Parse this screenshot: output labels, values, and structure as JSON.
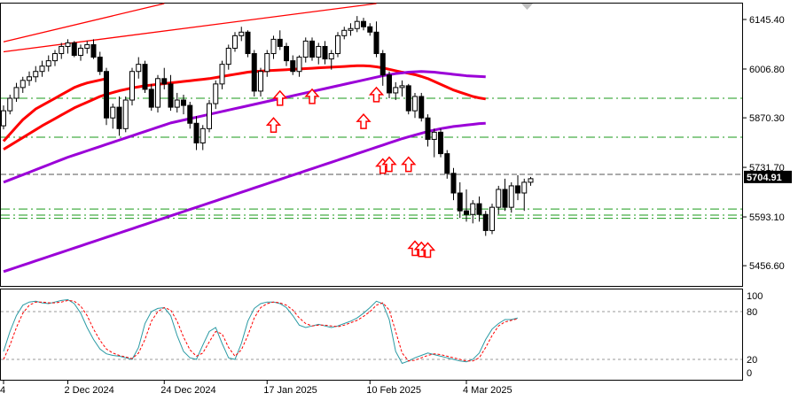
{
  "chart_data": [
    {
      "type": "candlestick",
      "panel": "price",
      "y_ticks": [
        "6145.40",
        "6006.80",
        "5870.30",
        "5731.70",
        "5593.10",
        "5456.60"
      ],
      "ylim": [
        5400,
        6190
      ],
      "price_label": "5704.91",
      "price_label_value": 5704.91,
      "x_ticks": [
        {
          "label": "4",
          "index": 0
        },
        {
          "label": "2 Dec 2024",
          "index": 10
        },
        {
          "label": "24 Dec 2024",
          "index": 25
        },
        {
          "label": "17 Jan 2025",
          "index": 41
        },
        {
          "label": "10 Feb 2025",
          "index": 57
        },
        {
          "label": "4 Mar 2025",
          "index": 72
        }
      ],
      "candles": [
        [
          5848,
          5905,
          5838,
          5890
        ],
        [
          5890,
          5935,
          5880,
          5925
        ],
        [
          5925,
          5968,
          5915,
          5955
        ],
        [
          5955,
          5985,
          5940,
          5975
        ],
        [
          5975,
          6000,
          5960,
          5985
        ],
        [
          5985,
          6015,
          5970,
          6000
        ],
        [
          6000,
          6030,
          5985,
          6015
        ],
        [
          6015,
          6045,
          6000,
          6030
        ],
        [
          6030,
          6060,
          6015,
          6050
        ],
        [
          6050,
          6080,
          6035,
          6070
        ],
        [
          6070,
          6090,
          6050,
          6080
        ],
        [
          6080,
          6085,
          6040,
          6045
        ],
        [
          6045,
          6075,
          6030,
          6065
        ],
        [
          6065,
          6085,
          6050,
          6075
        ],
        [
          6075,
          6090,
          6035,
          6040
        ],
        [
          6040,
          6055,
          5990,
          6000
        ],
        [
          6000,
          6010,
          5850,
          5870
        ],
        [
          5870,
          5910,
          5840,
          5900
        ],
        [
          5900,
          5930,
          5820,
          5840
        ],
        [
          5840,
          5930,
          5830,
          5920
        ],
        [
          5920,
          6010,
          5905,
          6000
        ],
        [
          6000,
          6040,
          5980,
          6020
        ],
        [
          6020,
          6030,
          5940,
          5950
        ],
        [
          5950,
          5965,
          5890,
          5900
        ],
        [
          5900,
          5990,
          5885,
          5980
        ],
        [
          5980,
          6010,
          5950,
          5965
        ],
        [
          5965,
          5990,
          5890,
          5900
        ],
        [
          5900,
          5940,
          5885,
          5920
        ],
        [
          5920,
          5935,
          5880,
          5905
        ],
        [
          5905,
          5915,
          5840,
          5855
        ],
        [
          5855,
          5875,
          5780,
          5800
        ],
        [
          5800,
          5850,
          5780,
          5840
        ],
        [
          5840,
          5920,
          5830,
          5910
        ],
        [
          5910,
          5975,
          5895,
          5965
        ],
        [
          5965,
          6030,
          5950,
          6020
        ],
        [
          6020,
          6075,
          6005,
          6065
        ],
        [
          6065,
          6110,
          6055,
          6100
        ],
        [
          6100,
          6125,
          6085,
          6110
        ],
        [
          6110,
          6115,
          6040,
          6050
        ],
        [
          6050,
          6060,
          5930,
          5945
        ],
        [
          5945,
          6010,
          5930,
          6000
        ],
        [
          6000,
          6060,
          5985,
          6050
        ],
        [
          6050,
          6100,
          6035,
          6090
        ],
        [
          6090,
          6115,
          6060,
          6070
        ],
        [
          6070,
          6080,
          6015,
          6030
        ],
        [
          6030,
          6045,
          5990,
          6000
        ],
        [
          6000,
          6045,
          5985,
          6040
        ],
        [
          6040,
          6095,
          6025,
          6085
        ],
        [
          6085,
          6095,
          6030,
          6040
        ],
        [
          6040,
          6080,
          6020,
          6070
        ],
        [
          6070,
          6085,
          6020,
          6035
        ],
        [
          6035,
          6060,
          6005,
          6050
        ],
        [
          6050,
          6110,
          6040,
          6100
        ],
        [
          6100,
          6125,
          6090,
          6115
        ],
        [
          6115,
          6135,
          6100,
          6120
        ],
        [
          6120,
          6155,
          6110,
          6140
        ],
        [
          6140,
          6150,
          6115,
          6125
        ],
        [
          6125,
          6135,
          6100,
          6110
        ],
        [
          6110,
          6140,
          6040,
          6050
        ],
        [
          6050,
          6060,
          5960,
          5990
        ],
        [
          5990,
          6000,
          5925,
          5940
        ],
        [
          5940,
          5970,
          5920,
          5955
        ],
        [
          5955,
          5975,
          5930,
          5960
        ],
        [
          5960,
          5965,
          5880,
          5890
        ],
        [
          5890,
          5940,
          5870,
          5930
        ],
        [
          5930,
          5940,
          5860,
          5870
        ],
        [
          5870,
          5880,
          5790,
          5810
        ],
        [
          5810,
          5840,
          5760,
          5830
        ],
        [
          5830,
          5840,
          5760,
          5770
        ],
        [
          5770,
          5780,
          5700,
          5715
        ],
        [
          5715,
          5730,
          5640,
          5660
        ],
        [
          5660,
          5690,
          5590,
          5610
        ],
        [
          5610,
          5670,
          5580,
          5600
        ],
        [
          5600,
          5640,
          5575,
          5630
        ],
        [
          5630,
          5650,
          5580,
          5600
        ],
        [
          5600,
          5610,
          5540,
          5555
        ],
        [
          5555,
          5630,
          5545,
          5620
        ],
        [
          5620,
          5680,
          5600,
          5670
        ],
        [
          5670,
          5700,
          5610,
          5620
        ],
        [
          5620,
          5690,
          5605,
          5680
        ],
        [
          5680,
          5710,
          5640,
          5660
        ],
        [
          5660,
          5700,
          5610,
          5690
        ],
        [
          5690,
          5705,
          5680,
          5700
        ]
      ],
      "moving_averages": [
        {
          "color": "#ff0000",
          "values": [
            5782,
            5793,
            5804,
            5815,
            5826,
            5837,
            5848,
            5858,
            5868,
            5878,
            5888,
            5898,
            5906,
            5914,
            5922,
            5930,
            5936,
            5941,
            5946,
            5950,
            5954,
            5957,
            5960,
            5962,
            5964,
            5966,
            5968,
            5970,
            5972,
            5974,
            5976,
            5978,
            5980,
            5983,
            5986,
            5989,
            5992,
            5995,
            5998,
            6000,
            6001,
            6002,
            6003,
            6004,
            6005,
            6006,
            6007,
            6008,
            6009,
            6010,
            6011,
            6012,
            6013,
            6014,
            6015,
            6016,
            6016,
            6015,
            6013,
            6010,
            6006,
            6002,
            5998,
            5995,
            5991,
            5986,
            5980,
            5972,
            5964,
            5956,
            5948,
            5942,
            5936,
            5930,
            5926,
            5923
          ]
        },
        {
          "color": "#9b00d8",
          "values": [
            5690,
            5697,
            5704,
            5711,
            5718,
            5725,
            5732,
            5739,
            5746,
            5753,
            5760,
            5766,
            5772,
            5778,
            5784,
            5790,
            5796,
            5802,
            5808,
            5814,
            5820,
            5826,
            5832,
            5838,
            5844,
            5850,
            5856,
            5860,
            5864,
            5868,
            5872,
            5876,
            5880,
            5884,
            5888,
            5892,
            5896,
            5900,
            5904,
            5908,
            5912,
            5916,
            5920,
            5924,
            5928,
            5932,
            5936,
            5940,
            5944,
            5948,
            5952,
            5956,
            5960,
            5964,
            5968,
            5972,
            5976,
            5980,
            5984,
            5988,
            5991,
            5994,
            5996,
            5998,
            5999,
            6000,
            5999,
            5998,
            5996,
            5994,
            5992,
            5990,
            5988,
            5987,
            5986,
            5985
          ]
        },
        {
          "color": "#9b00d8",
          "values": [
            5440,
            5446,
            5452,
            5458,
            5464,
            5470,
            5476,
            5482,
            5488,
            5494,
            5500,
            5506,
            5512,
            5518,
            5524,
            5530,
            5536,
            5542,
            5548,
            5554,
            5560,
            5566,
            5572,
            5578,
            5584,
            5590,
            5596,
            5602,
            5608,
            5614,
            5620,
            5626,
            5632,
            5638,
            5644,
            5650,
            5656,
            5662,
            5668,
            5674,
            5680,
            5686,
            5692,
            5698,
            5704,
            5710,
            5716,
            5722,
            5728,
            5734,
            5740,
            5746,
            5752,
            5758,
            5764,
            5770,
            5776,
            5782,
            5788,
            5794,
            5800,
            5806,
            5812,
            5817,
            5822,
            5827,
            5832,
            5836,
            5840,
            5843,
            5846,
            5848,
            5850,
            5852,
            5854,
            5855
          ]
        }
      ],
      "ma_start_index": 0,
      "trend_lines": [
        {
          "color": "#ff0000",
          "from": [
            0,
            6083
          ],
          "to": [
            25,
            6190
          ]
        },
        {
          "color": "#ff0000",
          "from": [
            0,
            6055
          ],
          "to": [
            58,
            6190
          ]
        }
      ],
      "channel_line": {
        "color": "#ff0000",
        "values": [
          5805,
          5825,
          5845,
          5865,
          5880,
          5895,
          5905,
          5915,
          5925,
          5935,
          5945,
          5955,
          5962,
          5968,
          5972,
          5976,
          5980
        ]
      },
      "h_lines": [
        {
          "value": 5925,
          "style": "dashdot"
        },
        {
          "value": 5816,
          "style": "dashdot"
        },
        {
          "value": 5712,
          "style": "dashed"
        },
        {
          "value": 5615,
          "style": "dashdot"
        },
        {
          "value": 5598,
          "style": "dashdot"
        },
        {
          "value": 5589,
          "style": "dashdot"
        }
      ],
      "arrows": [
        {
          "index": 42,
          "value": 5870
        },
        {
          "index": 43,
          "value": 5945
        },
        {
          "index": 48,
          "value": 5950
        },
        {
          "index": 56,
          "value": 5880
        },
        {
          "index": 58,
          "value": 5955
        },
        {
          "index": 59,
          "value": 5755
        },
        {
          "index": 60,
          "value": 5760
        },
        {
          "index": 63,
          "value": 5760
        },
        {
          "index": 64,
          "value": 5525
        },
        {
          "index": 65,
          "value": 5522
        },
        {
          "index": 66,
          "value": 5520
        }
      ]
    },
    {
      "type": "line",
      "panel": "stochastic",
      "y_ticks": [
        "100",
        "80",
        "20",
        "0"
      ],
      "levels": [
        80,
        20
      ],
      "ylim": [
        0,
        100
      ],
      "series": [
        {
          "style": "solid",
          "color": "#2a9aa4",
          "values": [
            30,
            55,
            75,
            88,
            92,
            93,
            91,
            90,
            92,
            94,
            95,
            90,
            78,
            60,
            45,
            33,
            27,
            25,
            24,
            22,
            20,
            35,
            65,
            80,
            84,
            85,
            75,
            50,
            30,
            22,
            20,
            38,
            55,
            60,
            40,
            22,
            20,
            40,
            68,
            84,
            90,
            92,
            92,
            90,
            85,
            75,
            63,
            60,
            62,
            64,
            62,
            60,
            62,
            65,
            68,
            72,
            78,
            85,
            93,
            90,
            70,
            30,
            15,
            18,
            22,
            25,
            28,
            26,
            24,
            22,
            20,
            18,
            17,
            20,
            28,
            45,
            58,
            65,
            70,
            70,
            72
          ]
        },
        {
          "style": "dashed",
          "color": "#ff0000",
          "values": [
            20,
            38,
            60,
            78,
            88,
            92,
            92,
            91,
            91,
            92,
            94,
            93,
            87,
            75,
            58,
            44,
            33,
            28,
            25,
            23,
            21,
            28,
            45,
            68,
            80,
            85,
            82,
            68,
            48,
            32,
            24,
            28,
            42,
            55,
            52,
            35,
            24,
            32,
            50,
            72,
            85,
            90,
            92,
            91,
            88,
            82,
            72,
            65,
            62,
            63,
            63,
            62,
            61,
            63,
            66,
            69,
            74,
            80,
            88,
            91,
            82,
            55,
            28,
            18,
            19,
            22,
            25,
            27,
            26,
            24,
            22,
            20,
            18,
            18,
            22,
            35,
            50,
            62,
            67,
            69,
            71
          ]
        }
      ]
    }
  ]
}
